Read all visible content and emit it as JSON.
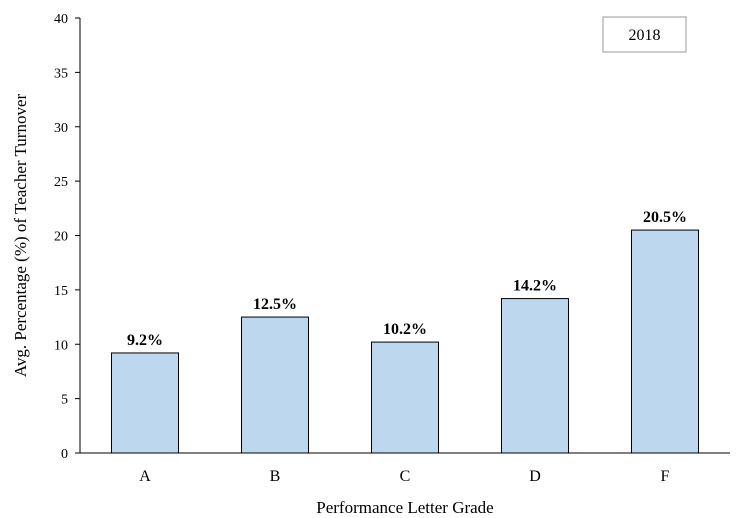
{
  "chart_data": {
    "type": "bar",
    "categories": [
      "A",
      "B",
      "C",
      "D",
      "F"
    ],
    "values": [
      9.2,
      12.5,
      10.2,
      14.2,
      20.5
    ],
    "data_labels": [
      "9.2%",
      "12.5%",
      "10.2%",
      "14.2%",
      "20.5%"
    ],
    "ylim": [
      0,
      40
    ],
    "yticks": [
      0,
      5,
      10,
      15,
      20,
      25,
      30,
      35,
      40
    ],
    "xlabel": "Performance Letter Grade",
    "ylabel": "Avg. Percentage (%) of Teacher Turnover",
    "legend_text": "2018",
    "legend_position": "top-right",
    "grid": false,
    "bar_color": "#bdd7ee",
    "bar_edge_color": "#000000"
  }
}
